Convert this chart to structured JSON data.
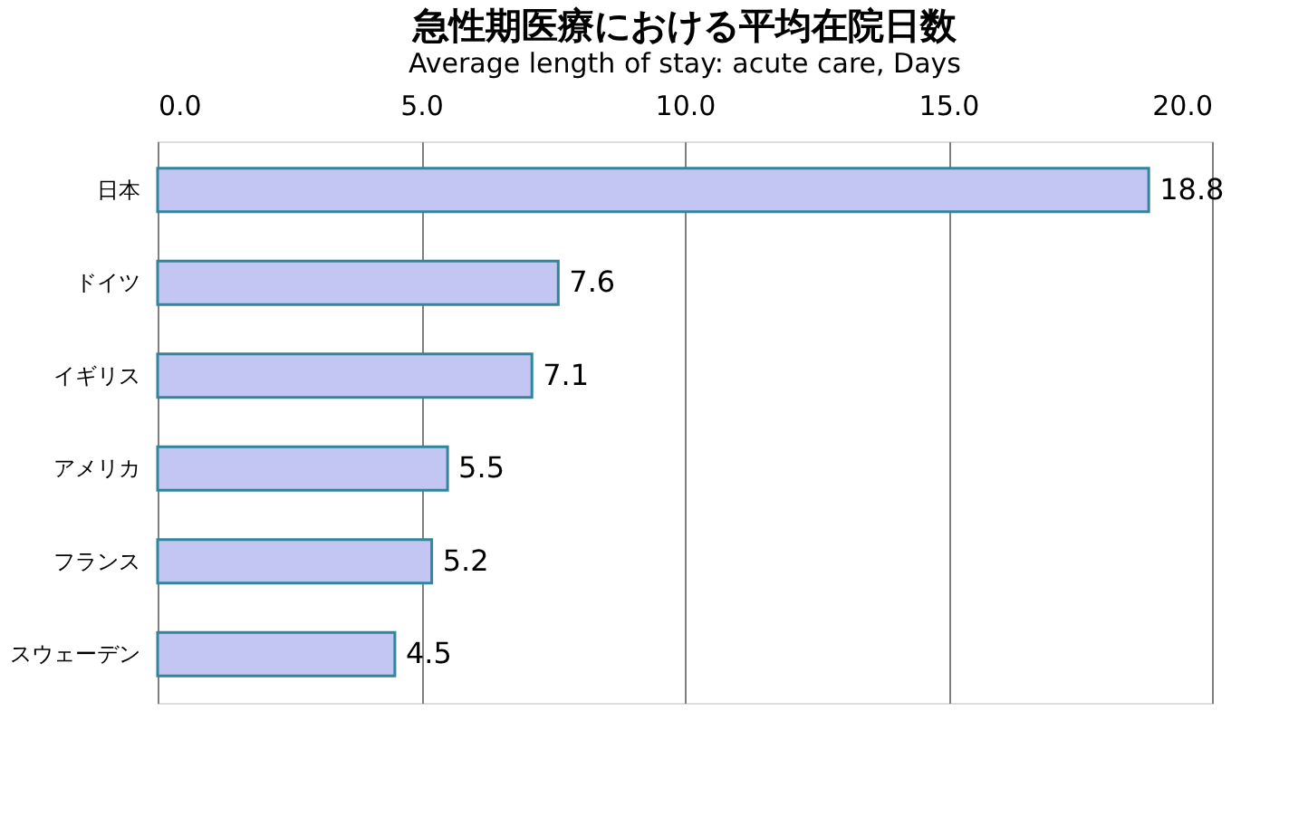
{
  "chart_data": {
    "type": "bar",
    "orientation": "horizontal",
    "title": "急性期医療における平均在院日数",
    "subtitle": "Average length of stay: acute care, Days",
    "categories": [
      "日本",
      "ドイツ",
      "イギリス",
      "アメリカ",
      "フランス",
      "スウェーデン"
    ],
    "values": [
      18.8,
      7.6,
      7.1,
      5.5,
      5.2,
      4.5
    ],
    "color": "#c3c6f2",
    "xlim": [
      0,
      20
    ],
    "xticks": [
      {
        "value": 0,
        "label": "0.0"
      },
      {
        "value": 5,
        "label": "5.0"
      },
      {
        "value": 10,
        "label": "10.0"
      },
      {
        "value": 15,
        "label": "15.0"
      },
      {
        "value": 20,
        "label": "20.0"
      }
    ],
    "grid": "x",
    "data_labels": true
  }
}
